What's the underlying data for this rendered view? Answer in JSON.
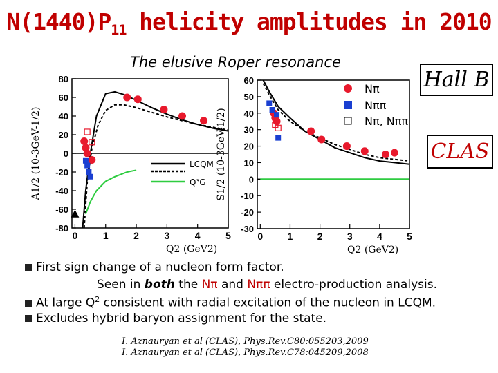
{
  "title_main": "N(1440)P",
  "title_sub": "11",
  "title_rest": " helicity amplitudes in 2010",
  "subtitle": "The elusive Roper resonance",
  "hall_b": "Hall B",
  "clas": "CLAS",
  "legend_top": [
    {
      "label": "Nπ",
      "marker": "circle",
      "color": "#e8192c"
    },
    {
      "label": "Nππ",
      "marker": "square",
      "color": "#1a3fd1"
    },
    {
      "label": "Nπ, Nππ",
      "marker": "open-square",
      "color": "#000000"
    }
  ],
  "legend_models": [
    {
      "label": "LCQM",
      "style": "solid",
      "color": "#000000"
    },
    {
      "label": "",
      "style": "dashed",
      "color": "#000000"
    },
    {
      "label": "Q³G",
      "style": "solid",
      "color": "#2ecc40"
    }
  ],
  "bullets": {
    "b1": "First sign change of a nucleon form factor.",
    "b1b_pre": "Seen in ",
    "b1b_bold": "both",
    "b1b_mid": " the ",
    "b1b_red1": "Nπ",
    "b1b_and": " and ",
    "b1b_red2": "Nππ",
    "b1b_post": " electro-production analysis.",
    "b2_pre": "At large Q",
    "b2_sup": "2",
    "b2_post": " consistent with radial excitation of the nucleon in LCQM.",
    "b3": "Excludes hybrid baryon assignment for the state."
  },
  "references": [
    "I. Aznauryan et al (CLAS), Phys.Rev.C80:055203,2009",
    "I. Aznauryan et al (CLAS), Phys.Rev.C78:045209,2008"
  ],
  "chart_data": [
    {
      "type": "scatter",
      "ylabel": "A1/2 (10-3GeV-1/2)",
      "xlabel": "Q2 (GeV2)",
      "xlim": [
        -0.1,
        5
      ],
      "ylim": [
        -80,
        80
      ],
      "xticks": [
        "0",
        "1",
        "2",
        "3",
        "4",
        "5"
      ],
      "yticks": [
        "-80",
        "-60",
        "-40",
        "-20",
        "0",
        "20",
        "40",
        "60",
        "80"
      ],
      "series": [
        {
          "name": "Nπ",
          "marker": "circle",
          "points": [
            [
              0.3,
              13
            ],
            [
              0.35,
              6
            ],
            [
              0.4,
              0
            ],
            [
              0.55,
              -7
            ],
            [
              1.7,
              60
            ],
            [
              2.05,
              58
            ],
            [
              2.9,
              47
            ],
            [
              3.5,
              40
            ],
            [
              4.2,
              35
            ]
          ]
        },
        {
          "name": "Nππ",
          "marker": "square",
          "points": [
            [
              0.35,
              -8
            ],
            [
              0.4,
              -13
            ],
            [
              0.45,
              -20
            ],
            [
              0.5,
              -25
            ]
          ]
        },
        {
          "name": "Nπ, Nππ",
          "marker": "open-square",
          "points": [
            [
              0.4,
              23
            ],
            [
              0.55,
              12
            ]
          ]
        },
        {
          "name": "",
          "marker": "triangle",
          "points": [
            [
              0,
              -65
            ]
          ]
        }
      ],
      "curves": [
        {
          "style": "solid",
          "color": "#000000",
          "x": [
            0.25,
            0.35,
            0.5,
            0.7,
            1.0,
            1.3,
            1.6,
            2.0,
            2.5,
            3.0,
            3.5,
            4.0,
            4.5,
            5.0
          ],
          "y": [
            -80,
            -40,
            0,
            40,
            64,
            66,
            63,
            57,
            49,
            42,
            36,
            31,
            27,
            24
          ]
        },
        {
          "style": "dashed",
          "color": "#000000",
          "x": [
            0.3,
            0.4,
            0.55,
            0.75,
            1.0,
            1.3,
            1.6,
            2.0,
            2.5,
            3.0,
            3.5,
            4.0,
            4.5,
            5.0
          ],
          "y": [
            -80,
            -30,
            5,
            30,
            46,
            52,
            52,
            49,
            44,
            39,
            35,
            31,
            28,
            25
          ]
        },
        {
          "style": "solid",
          "color": "#2ecc40",
          "x": [
            0.35,
            0.5,
            0.7,
            1.0,
            1.3,
            1.7,
            2.0
          ],
          "y": [
            -65,
            -52,
            -40,
            -30,
            -25,
            -20,
            -18
          ]
        }
      ]
    },
    {
      "type": "scatter",
      "ylabel": "S1/2 (10-3GeV-1/2)",
      "xlabel": "Q2 (GeV2)",
      "xlim": [
        -0.1,
        5
      ],
      "ylim": [
        -30,
        60
      ],
      "xticks": [
        "0",
        "1",
        "2",
        "3",
        "4",
        "5"
      ],
      "yticks": [
        "-30",
        "-20",
        "-10",
        "0",
        "10",
        "20",
        "30",
        "40",
        "50",
        "60"
      ],
      "series": [
        {
          "name": "Nπ",
          "marker": "circle",
          "points": [
            [
              0.45,
              40
            ],
            [
              0.5,
              37
            ],
            [
              0.55,
              35
            ],
            [
              1.7,
              29
            ],
            [
              2.05,
              24
            ],
            [
              2.9,
              20
            ],
            [
              3.5,
              17
            ],
            [
              4.2,
              15
            ],
            [
              4.5,
              16
            ]
          ]
        },
        {
          "name": "Nππ",
          "marker": "square",
          "points": [
            [
              0.3,
              46
            ],
            [
              0.4,
              42
            ],
            [
              0.55,
              39
            ],
            [
              0.6,
              25
            ]
          ]
        },
        {
          "name": "Nπ, Nππ",
          "marker": "open-square",
          "points": [
            [
              0.5,
              33
            ],
            [
              0.6,
              31
            ]
          ]
        }
      ],
      "curves": [
        {
          "style": "solid",
          "color": "#000000",
          "x": [
            0.1,
            0.3,
            0.6,
            1.0,
            1.5,
            2.0,
            2.5,
            3.0,
            3.5,
            4.0,
            4.5,
            5.0
          ],
          "y": [
            60,
            53,
            44,
            37,
            29,
            24,
            19,
            16,
            13,
            11,
            10,
            9
          ]
        },
        {
          "style": "dashed",
          "color": "#000000",
          "x": [
            0.1,
            0.3,
            0.6,
            1.0,
            1.5,
            2.0,
            2.5,
            3.0,
            3.5,
            4.0,
            4.5,
            5.0
          ],
          "y": [
            58,
            51,
            42,
            35,
            29,
            25,
            21,
            18,
            15,
            13,
            12,
            11
          ]
        },
        {
          "style": "solid",
          "color": "#2ecc40",
          "x": [
            0,
            5
          ],
          "y": [
            0,
            0
          ]
        }
      ]
    }
  ]
}
